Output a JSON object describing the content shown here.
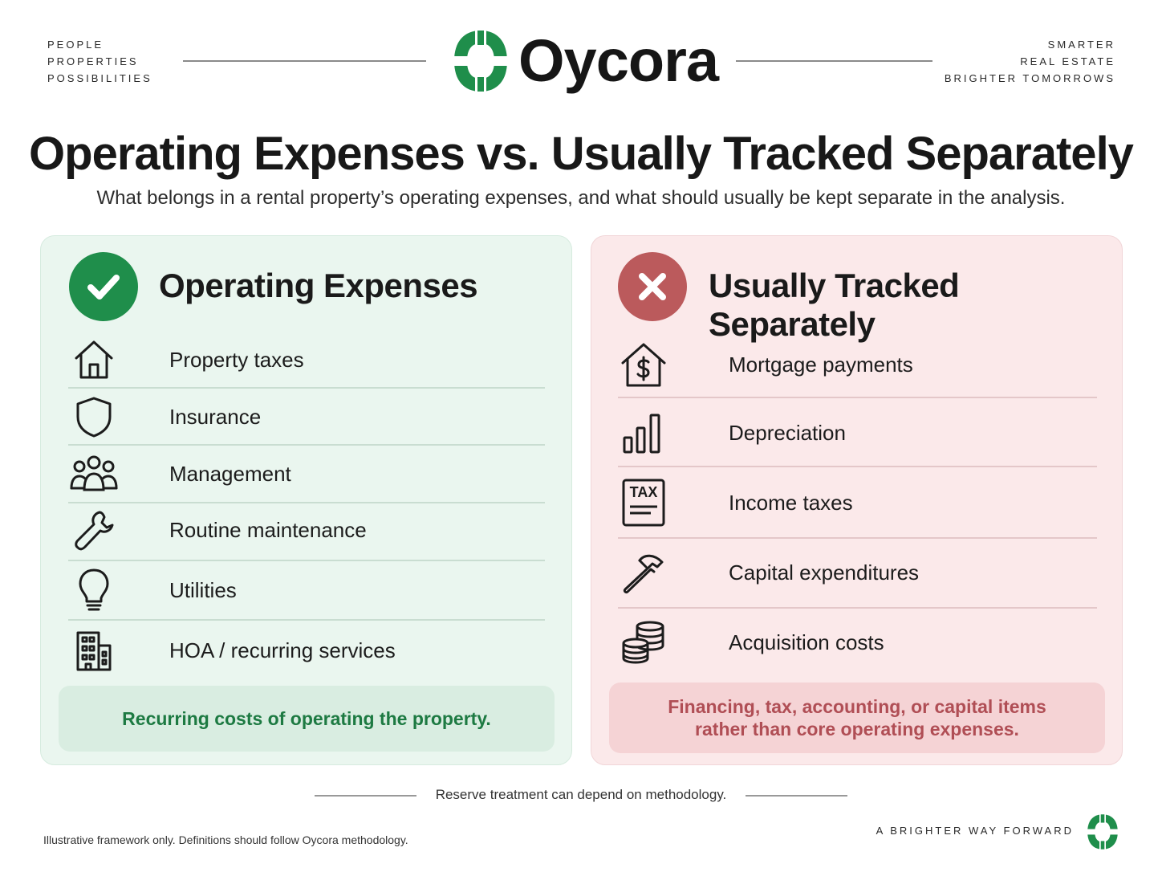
{
  "header": {
    "left_tagline": [
      "PEOPLE",
      "PROPERTIES",
      "POSSIBILITIES"
    ],
    "right_tagline": [
      "SMARTER",
      "REAL ESTATE",
      "BRIGHTER TOMORROWS"
    ],
    "brand": "Oycora",
    "brand_color": "#1f8e4b"
  },
  "title": "Operating Expenses vs. Usually Tracked Separately",
  "subtitle": "What belongs in a rental property’s operating expenses, and what should usually be kept separate in the analysis.",
  "operating": {
    "title": "Operating Expenses",
    "badge_icon": "checkmark-icon",
    "accent": "#1f8e4b",
    "items": [
      {
        "icon": "house-icon",
        "label": "Property taxes"
      },
      {
        "icon": "shield-icon",
        "label": "Insurance"
      },
      {
        "icon": "people-group-icon",
        "label": "Management"
      },
      {
        "icon": "wrench-icon",
        "label": "Routine maintenance"
      },
      {
        "icon": "lightbulb-icon",
        "label": "Utilities"
      },
      {
        "icon": "building-icon",
        "label": "HOA / recurring services"
      }
    ],
    "note": "Recurring costs of operating the property."
  },
  "separate": {
    "title": "Usually Tracked Separately",
    "badge_icon": "x-icon",
    "accent": "#bb5a5c",
    "items": [
      {
        "icon": "house-dollar-icon",
        "label": "Mortgage payments"
      },
      {
        "icon": "bar-chart-icon",
        "label": "Depreciation"
      },
      {
        "icon": "tax-document-icon",
        "label": "Income taxes",
        "icon_text": "TAX"
      },
      {
        "icon": "hammer-icon",
        "label": "Capital expenditures"
      },
      {
        "icon": "coins-icon",
        "label": "Acquisition costs"
      }
    ],
    "note_line1": "Financing, tax, accounting, or capital items",
    "note_line2": "rather than core operating expenses."
  },
  "footer": {
    "reserve_note": "Reserve treatment can depend on methodology.",
    "disclaimer": "Illustrative framework only. Definitions should follow Oycora methodology.",
    "motto": "A BRIGHTER WAY FORWARD"
  }
}
